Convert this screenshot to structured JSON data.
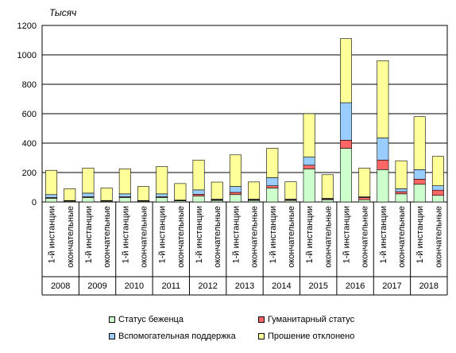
{
  "chart_data": {
    "type": "bar",
    "stacked": true,
    "unit_label": "Тысяч",
    "ylim": [
      0,
      1200
    ],
    "y_ticks": [
      "0",
      "200",
      "400",
      "600",
      "800",
      "1000",
      "1200"
    ],
    "grid": true,
    "subcategories": [
      "1-й инстанции",
      "окончательные"
    ],
    "years": [
      "2008",
      "2009",
      "2010",
      "2011",
      "2012",
      "2013",
      "2014",
      "2015",
      "2016",
      "2017",
      "2018"
    ],
    "series": [
      {
        "name": "Статус беженца",
        "color": "#ccffcc",
        "values": [
          [
            25,
            5
          ],
          [
            30,
            5
          ],
          [
            30,
            5
          ],
          [
            30,
            8
          ],
          [
            40,
            10
          ],
          [
            50,
            10
          ],
          [
            95,
            10
          ],
          [
            225,
            15
          ],
          [
            365,
            15
          ],
          [
            220,
            55
          ],
          [
            120,
            45
          ]
        ]
      },
      {
        "name": "Гуманитарный статус",
        "color": "#ff6666",
        "values": [
          [
            5,
            2
          ],
          [
            5,
            2
          ],
          [
            5,
            2
          ],
          [
            5,
            2
          ],
          [
            12,
            4
          ],
          [
            15,
            4
          ],
          [
            15,
            5
          ],
          [
            25,
            5
          ],
          [
            55,
            15
          ],
          [
            65,
            15
          ],
          [
            35,
            35
          ]
        ]
      },
      {
        "name": "Вспомогательная поддержка",
        "color": "#99ccff",
        "values": [
          [
            20,
            3
          ],
          [
            25,
            3
          ],
          [
            20,
            3
          ],
          [
            20,
            3
          ],
          [
            30,
            5
          ],
          [
            40,
            5
          ],
          [
            55,
            5
          ],
          [
            55,
            5
          ],
          [
            255,
            5
          ],
          [
            150,
            20
          ],
          [
            65,
            30
          ]
        ]
      },
      {
        "name": "Прошение отклонено",
        "color": "#ffff99",
        "values": [
          [
            165,
            80
          ],
          [
            170,
            85
          ],
          [
            170,
            95
          ],
          [
            185,
            112
          ],
          [
            203,
            116
          ],
          [
            215,
            117
          ],
          [
            200,
            117
          ],
          [
            295,
            160
          ],
          [
            435,
            195
          ],
          [
            525,
            190
          ],
          [
            360,
            200
          ]
        ]
      }
    ]
  }
}
